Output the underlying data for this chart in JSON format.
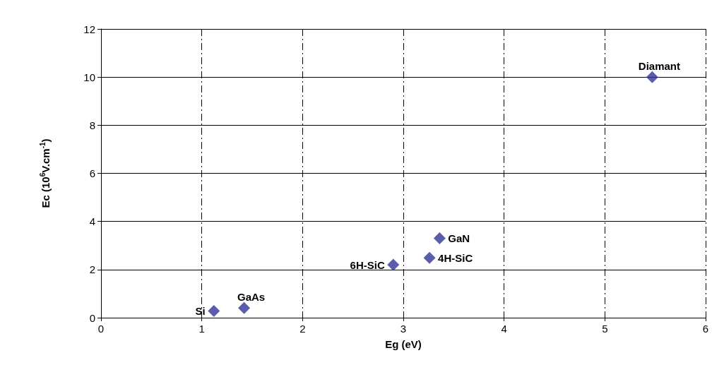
{
  "chart_data": {
    "type": "scatter",
    "xlabel": "Eg (eV)",
    "ylabel": "Ec (10$^{6}$V.cm$^{-1}$)",
    "x": [
      1.12,
      1.42,
      2.9,
      3.26,
      3.36,
      5.47
    ],
    "values": [
      0.28,
      0.4,
      2.2,
      2.49,
      3.3,
      10.0
    ],
    "color": "#333399",
    "marker": "diamond",
    "xlim": [
      0,
      6
    ],
    "xticks": [
      0,
      1,
      2,
      3,
      4,
      5,
      6
    ],
    "ylim": [
      0,
      12
    ],
    "yticks": [
      0,
      2,
      4,
      6,
      8,
      10,
      12
    ],
    "grid": true,
    "annotations": [
      {
        "text": "Si",
        "x": 1.12,
        "y": 0.28
      },
      {
        "text": "GaAs",
        "x": 1.42,
        "y": 0.4
      },
      {
        "text": "6H-SiC",
        "x": 2.9,
        "y": 2.2
      },
      {
        "text": "4H-SiC",
        "x": 3.26,
        "y": 2.49
      },
      {
        "text": "GaN",
        "x": 3.36,
        "y": 3.3
      },
      {
        "text": "Diamant",
        "x": 5.47,
        "y": 10.0
      }
    ]
  }
}
